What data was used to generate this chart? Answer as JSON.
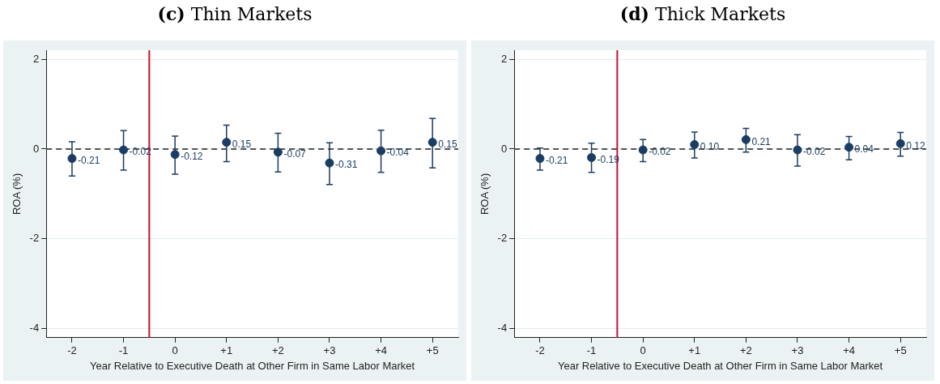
{
  "chart_data": [
    {
      "type": "scatter",
      "title": "(c) Thin Markets",
      "xlabel": "Year Relative to Executive Death at Other Firm in Same Labor Market",
      "ylabel": "ROA (%)",
      "x": [
        -2,
        -1,
        0,
        1,
        2,
        3,
        4,
        5
      ],
      "series": [
        {
          "color": "#1b3d63",
          "values": [
            -0.21,
            -0.02,
            -0.12,
            0.15,
            -0.07,
            -0.31,
            -0.04,
            0.15
          ],
          "errors": [
            [
              -0.6,
              0.16
            ],
            [
              -0.47,
              0.41
            ],
            [
              -0.56,
              0.29
            ],
            [
              -0.28,
              0.53
            ],
            [
              -0.51,
              0.35
            ],
            [
              -0.79,
              0.14
            ],
            [
              -0.52,
              0.42
            ],
            [
              -0.42,
              0.68
            ]
          ],
          "value_labels": [
            "-0.21",
            "-0.02",
            "-0.12",
            "0.15",
            "-0.07",
            "-0.31",
            "-0.04",
            "0.15"
          ]
        }
      ],
      "xlim": [
        -2.5,
        5.5
      ],
      "xticks": [
        -2,
        -1,
        0,
        {
          "value": 1,
          "label": "+1"
        },
        {
          "value": 2,
          "label": "+2"
        },
        {
          "value": 3,
          "label": "+3"
        },
        {
          "value": 4,
          "label": "+4"
        },
        {
          "value": 5,
          "label": "+5"
        }
      ],
      "ylim": [
        -4.2,
        2.2
      ],
      "yticks": [
        -4,
        -2,
        0,
        2
      ],
      "ref_lines": [
        {
          "axis": "y",
          "value": 0,
          "color": "#555555",
          "line_style": "dashed"
        },
        {
          "axis": "x",
          "value": -0.5,
          "color": "#c8102e"
        }
      ],
      "marker": "circle",
      "grid": "y",
      "legend": false
    },
    {
      "type": "scatter",
      "title": "(d) Thick Markets",
      "xlabel": "Year Relative to Executive Death at Other Firm in Same Labor Market",
      "ylabel": "ROA (%)",
      "x": [
        -2,
        -1,
        0,
        1,
        2,
        3,
        4,
        5
      ],
      "series": [
        {
          "color": "#1b3d63",
          "values": [
            -0.21,
            -0.19,
            -0.02,
            0.1,
            0.21,
            -0.02,
            0.04,
            0.12
          ],
          "errors": [
            [
              -0.47,
              0.02
            ],
            [
              -0.52,
              0.13
            ],
            [
              -0.28,
              0.21
            ],
            [
              -0.2,
              0.38
            ],
            [
              -0.07,
              0.46
            ],
            [
              -0.38,
              0.32
            ],
            [
              -0.24,
              0.28
            ],
            [
              -0.16,
              0.37
            ]
          ],
          "value_labels": [
            "-0.21",
            "-0.19",
            "-0.02",
            "0.10",
            "0.21",
            "-0.02",
            "0.04",
            "0.12"
          ]
        }
      ],
      "xlim": [
        -2.5,
        5.5
      ],
      "xticks": [
        -2,
        -1,
        0,
        {
          "value": 1,
          "label": "+1"
        },
        {
          "value": 2,
          "label": "+2"
        },
        {
          "value": 3,
          "label": "+3"
        },
        {
          "value": 4,
          "label": "+4"
        },
        {
          "value": 5,
          "label": "+5"
        }
      ],
      "ylim": [
        -4.2,
        2.2
      ],
      "yticks": [
        -4,
        -2,
        0,
        2
      ],
      "ref_lines": [
        {
          "axis": "y",
          "value": 0,
          "color": "#555555",
          "line_style": "dashed"
        },
        {
          "axis": "x",
          "value": -0.5,
          "color": "#c8102e"
        }
      ],
      "marker": "circle",
      "grid": "y",
      "legend": false
    }
  ]
}
